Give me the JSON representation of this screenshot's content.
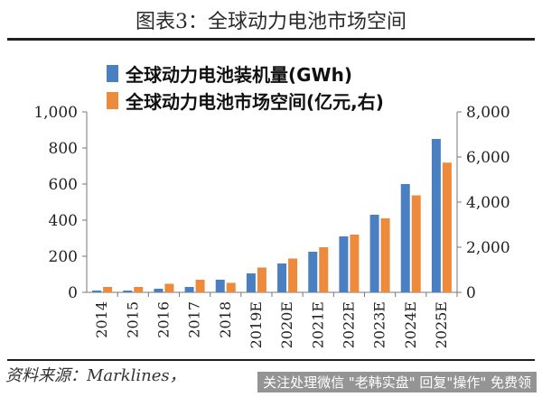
{
  "figure_title": "图表3：全球动力电池市场空间",
  "source": "资料来源：Marklines，",
  "watermark": "关注处理微信 \"老韩实盘\" 回复\"操作\" 免费领",
  "colors": {
    "capacity": "#4a7fc1",
    "market": "#ee8a3c",
    "axis": "#777777"
  },
  "chart_data": {
    "type": "bar",
    "categories": [
      "2014",
      "2015",
      "2016",
      "2017",
      "2018",
      "2019E",
      "2020E",
      "2021E",
      "2022E",
      "2023E",
      "2024E",
      "2025E"
    ],
    "series": [
      {
        "name": "全球动力电池装机量(GWh)",
        "axis": "left",
        "values": [
          10,
          10,
          20,
          30,
          70,
          105,
          160,
          225,
          310,
          430,
          600,
          850
        ]
      },
      {
        "name": "全球动力电池市场空间(亿元,右)",
        "axis": "right",
        "values": [
          240,
          240,
          380,
          560,
          420,
          1100,
          1500,
          2000,
          2560,
          3280,
          4300,
          5750
        ]
      }
    ],
    "y_left": {
      "min": 0,
      "max": 1000,
      "ticks": [
        "0",
        "200",
        "400",
        "600",
        "800",
        "1,000"
      ]
    },
    "y_right": {
      "min": 0,
      "max": 8000,
      "ticks": [
        "0",
        "2,000",
        "4,000",
        "6,000",
        "8,000"
      ]
    },
    "grid": false,
    "legend_position": "top-left"
  }
}
